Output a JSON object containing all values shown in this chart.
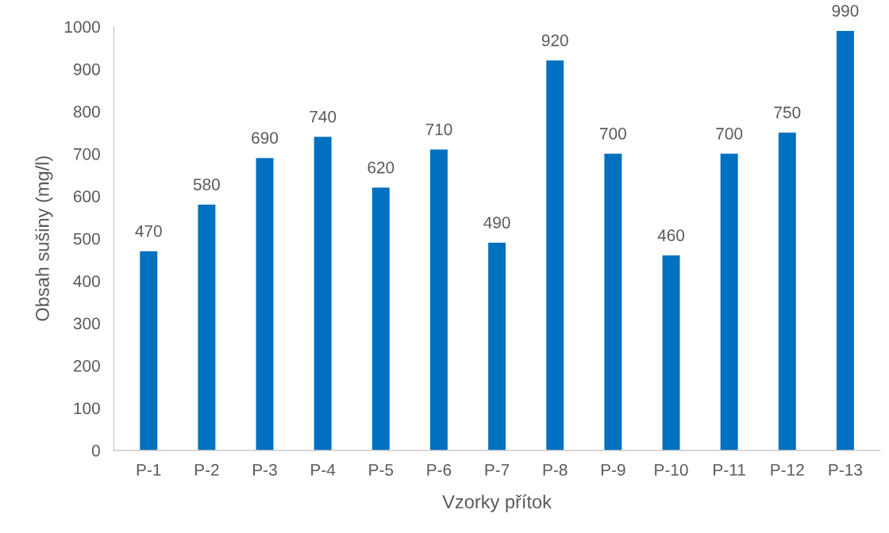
{
  "chart_data": {
    "type": "bar",
    "xlabel": "Vzorky přítok",
    "ylabel": "Obsah sušiny (mg/l)",
    "categories": [
      "P-1",
      "P-2",
      "P-3",
      "P-4",
      "P-5",
      "P-6",
      "P-7",
      "P-8",
      "P-9",
      "P-10",
      "P-11",
      "P-12",
      "P-13"
    ],
    "values": [
      470,
      580,
      690,
      740,
      620,
      710,
      490,
      920,
      700,
      460,
      700,
      750,
      990
    ],
    "color": "#0070c0",
    "ylim": [
      0,
      1000
    ],
    "yticks": [
      0,
      100,
      200,
      300,
      400,
      500,
      600,
      700,
      800,
      900,
      1000
    ],
    "data_labels": true,
    "grid": false,
    "legend": false
  }
}
